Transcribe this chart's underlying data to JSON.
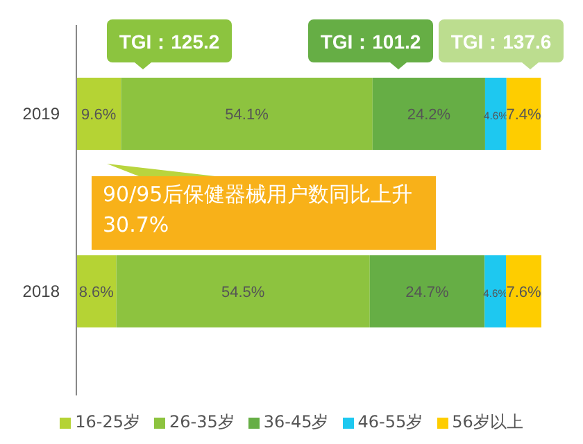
{
  "chart_data": {
    "type": "bar",
    "orientation": "horizontal",
    "stacked": true,
    "categories": [
      "2019",
      "2018"
    ],
    "xlim": [
      0,
      100
    ],
    "tick_labels": "y",
    "legend": "bottom",
    "series": [
      {
        "name": "16-25岁",
        "color": "#b5d334",
        "values": [
          9.6,
          8.6
        ],
        "value_labels": [
          "9.6%",
          "8.6%"
        ]
      },
      {
        "name": "26-35岁",
        "color": "#8dc33f",
        "values": [
          54.1,
          54.5
        ],
        "value_labels": [
          "54.1%",
          "54.5%"
        ]
      },
      {
        "name": "36-45岁",
        "color": "#66ae45",
        "values": [
          24.2,
          24.7
        ],
        "value_labels": [
          "24.2%",
          "24.7%"
        ]
      },
      {
        "name": "46-55岁",
        "color": "#1ec8f0",
        "values": [
          4.6,
          4.6
        ],
        "value_labels": [
          "4.6%",
          "4.6%"
        ]
      },
      {
        "name": "56岁以上",
        "color": "#fecd00",
        "values": [
          7.4,
          7.6
        ],
        "value_labels": [
          "7.4%",
          "7.6%"
        ]
      }
    ],
    "annotations": [
      "TGI：125.2",
      "TGI：101.2",
      "TGI：137.6",
      "90/95后保健器械用户数同比上升30.7%"
    ]
  }
}
